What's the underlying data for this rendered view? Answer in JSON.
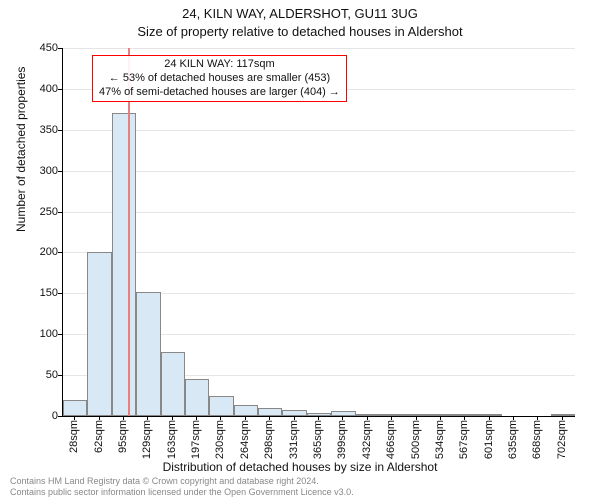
{
  "title_line1": "24, KILN WAY, ALDERSHOT, GU11 3UG",
  "title_line2": "Size of property relative to detached houses in Aldershot",
  "ylabel": "Number of detached properties",
  "xlabel": "Distribution of detached houses by size in Aldershot",
  "footer_line1": "Contains HM Land Registry data © Crown copyright and database right 2024.",
  "footer_line2": "Contains public sector information licensed under the Open Government Licence v3.0.",
  "chart": {
    "type": "histogram",
    "ylim": [
      0,
      450
    ],
    "ytick_step": 50,
    "background_color": "#ffffff",
    "grid_color": "#e5e5e5",
    "bar_fill": "#d9e8f5",
    "bar_border": "#888888",
    "marker_color": "#e68080",
    "annotation_border": "#ff0000",
    "axis_color": "#000000",
    "xtick_labels": [
      "28sqm",
      "62sqm",
      "95sqm",
      "129sqm",
      "163sqm",
      "197sqm",
      "230sqm",
      "264sqm",
      "298sqm",
      "331sqm",
      "365sqm",
      "399sqm",
      "432sqm",
      "466sqm",
      "500sqm",
      "534sqm",
      "567sqm",
      "601sqm",
      "635sqm",
      "668sqm",
      "702sqm"
    ],
    "bar_values": [
      20,
      200,
      370,
      152,
      78,
      45,
      25,
      14,
      10,
      7,
      4,
      6,
      3,
      2,
      2,
      1,
      1,
      1,
      0,
      0,
      1
    ],
    "marker_bin_index": 2,
    "marker_fraction_in_bin": 0.66
  },
  "annotation": {
    "line1": "24 KILN WAY: 117sqm",
    "line2": "← 53% of detached houses are smaller (453)",
    "line3": "47% of semi-detached houses are larger (404) →"
  }
}
